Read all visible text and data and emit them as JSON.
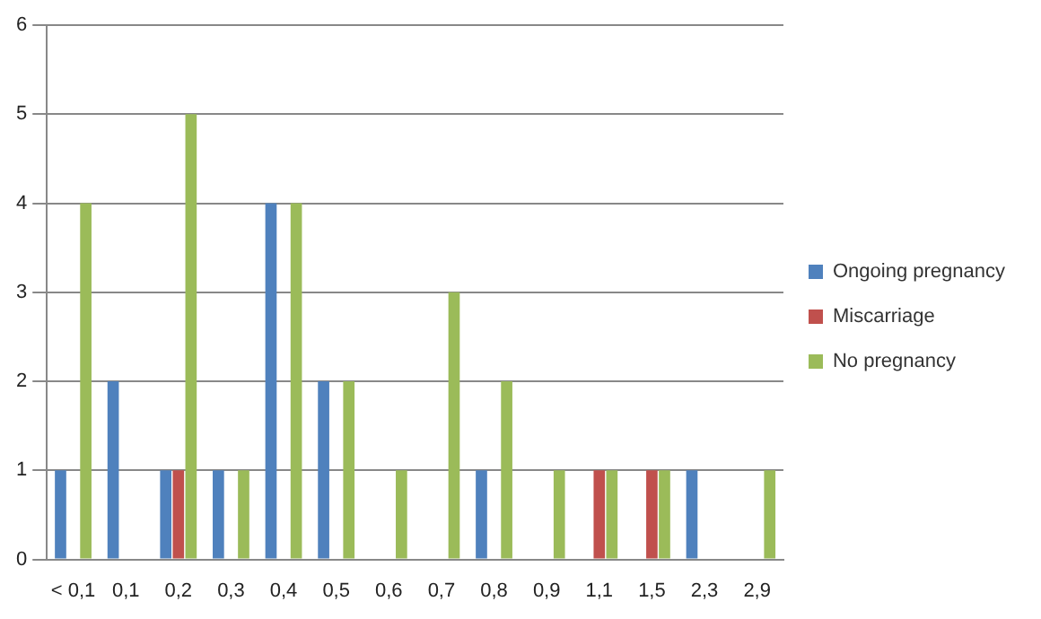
{
  "chart_data": {
    "type": "bar",
    "categories": [
      "< 0,1",
      "0,1",
      "0,2",
      "0,3",
      "0,4",
      "0,5",
      "0,6",
      "0,7",
      "0,8",
      "0,9",
      "1,1",
      "1,5",
      "2,3",
      "2,9"
    ],
    "series": [
      {
        "name": "Ongoing pregnancy",
        "color": "#4f81bd",
        "values": [
          1,
          2,
          1,
          1,
          4,
          2,
          0,
          0,
          1,
          0,
          0,
          0,
          1,
          0
        ]
      },
      {
        "name": "Miscarriage",
        "color": "#c0504d",
        "values": [
          0,
          0,
          1,
          0,
          0,
          0,
          0,
          0,
          0,
          0,
          1,
          1,
          0,
          0
        ]
      },
      {
        "name": "No pregnancy",
        "color": "#9bbb59",
        "values": [
          4,
          0,
          5,
          1,
          4,
          2,
          1,
          3,
          2,
          1,
          1,
          1,
          0,
          1
        ]
      }
    ],
    "ylim": [
      0,
      6
    ],
    "yticks": [
      0,
      1,
      2,
      3,
      4,
      5,
      6
    ],
    "grid": "y",
    "legend": "right"
  }
}
